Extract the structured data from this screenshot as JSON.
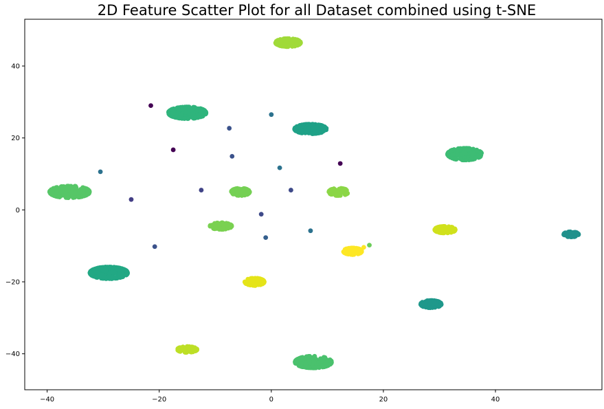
{
  "chart_data": {
    "type": "scatter",
    "title": "2D Feature Scatter Plot for all Dataset combined using t-SNE",
    "xlabel": "",
    "ylabel": "",
    "xlim": [
      -44,
      59
    ],
    "ylim": [
      -50,
      53
    ],
    "xticks": [
      -40,
      -20,
      0,
      20,
      40
    ],
    "yticks": [
      -40,
      -20,
      0,
      20,
      40
    ],
    "grid": false,
    "legend": "none",
    "clusters": [
      {
        "cx": 3,
        "cy": 46.5,
        "sx": 2.2,
        "sy": 1.1,
        "n": 90,
        "color": "#a0da39"
      },
      {
        "cx": -15,
        "cy": 27,
        "sx": 3.3,
        "sy": 1.6,
        "n": 200,
        "color": "#2fb47c"
      },
      {
        "cx": 7,
        "cy": 22.5,
        "sx": 2.8,
        "sy": 1.3,
        "n": 160,
        "color": "#1fa187"
      },
      {
        "cx": 34.5,
        "cy": 15.5,
        "sx": 3.0,
        "sy": 1.6,
        "n": 160,
        "color": "#3dbc74"
      },
      {
        "cx": -36,
        "cy": 5,
        "sx": 3.5,
        "sy": 1.6,
        "n": 200,
        "color": "#56c667"
      },
      {
        "cx": -5.5,
        "cy": 5,
        "sx": 1.6,
        "sy": 1.0,
        "n": 70,
        "color": "#75d054"
      },
      {
        "cx": 12,
        "cy": 5,
        "sx": 1.7,
        "sy": 1.0,
        "n": 70,
        "color": "#8bd646"
      },
      {
        "cx": -9,
        "cy": -4.5,
        "sx": 1.9,
        "sy": 0.9,
        "n": 70,
        "color": "#7ad151"
      },
      {
        "cx": 31,
        "cy": -5.5,
        "sx": 1.8,
        "sy": 0.9,
        "n": 90,
        "color": "#d0e11c"
      },
      {
        "cx": 53.5,
        "cy": -6.8,
        "sx": 1.3,
        "sy": 0.7,
        "n": 60,
        "color": "#21918c"
      },
      {
        "cx": 14.5,
        "cy": -11.5,
        "sx": 1.6,
        "sy": 0.9,
        "n": 90,
        "color": "#fde725"
      },
      {
        "cx": -29,
        "cy": -17.5,
        "sx": 3.3,
        "sy": 1.6,
        "n": 200,
        "color": "#22a884"
      },
      {
        "cx": -3,
        "cy": -20,
        "sx": 1.7,
        "sy": 1.0,
        "n": 80,
        "color": "#e5e419"
      },
      {
        "cx": 28.5,
        "cy": -26.2,
        "sx": 1.8,
        "sy": 1.0,
        "n": 80,
        "color": "#1f988b"
      },
      {
        "cx": -15,
        "cy": -38.8,
        "sx": 1.7,
        "sy": 0.8,
        "n": 70,
        "color": "#bddf26"
      },
      {
        "cx": 7.5,
        "cy": -42.3,
        "sx": 3.2,
        "sy": 1.6,
        "n": 200,
        "color": "#4ac16d"
      }
    ],
    "points": [
      {
        "x": -21.5,
        "y": 29.0,
        "color": "#440154"
      },
      {
        "x": 0.0,
        "y": 26.5,
        "color": "#2c728e"
      },
      {
        "x": -7.5,
        "y": 22.7,
        "color": "#3b528b"
      },
      {
        "x": -17.5,
        "y": 16.7,
        "color": "#440154"
      },
      {
        "x": -7.0,
        "y": 14.9,
        "color": "#3b528b"
      },
      {
        "x": 1.5,
        "y": 11.7,
        "color": "#2c728e"
      },
      {
        "x": 12.3,
        "y": 12.9,
        "color": "#440154"
      },
      {
        "x": -30.5,
        "y": 10.6,
        "color": "#2c728e"
      },
      {
        "x": -12.5,
        "y": 5.5,
        "color": "#414487"
      },
      {
        "x": 3.5,
        "y": 5.5,
        "color": "#3e4a89"
      },
      {
        "x": -25.0,
        "y": 2.9,
        "color": "#433e85"
      },
      {
        "x": -1.8,
        "y": -1.2,
        "color": "#3e4a89"
      },
      {
        "x": 7.0,
        "y": -5.8,
        "color": "#2c728e"
      },
      {
        "x": -1.0,
        "y": -7.7,
        "color": "#355f8d"
      },
      {
        "x": -20.8,
        "y": -10.2,
        "color": "#3b528b"
      },
      {
        "x": 17.5,
        "y": -9.8,
        "color": "#6ccd5a"
      },
      {
        "x": 16.5,
        "y": -10.4,
        "color": "#fde725"
      }
    ]
  }
}
